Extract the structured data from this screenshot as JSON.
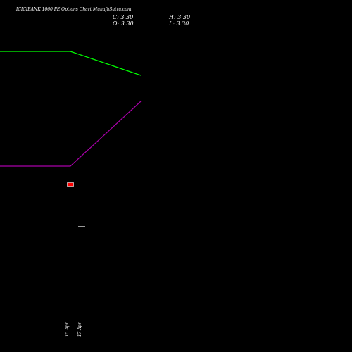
{
  "header": {
    "title": "ICICIBANK 1060 PE Options Chart MunafaSutra.com",
    "close_label": "C: 3.30",
    "open_label": "O: 3.30",
    "high_label": "H: 3.30",
    "low_label": "L: 3.30"
  },
  "chart_data": {
    "type": "line",
    "x": [
      0,
      1,
      2
    ],
    "ylim": [
      0,
      500
    ],
    "series": [
      {
        "color": "#00ff00",
        "values": [
          73,
          73,
          107
        ]
      },
      {
        "color": "#aa00aa",
        "values": [
          236,
          236,
          144
        ]
      }
    ],
    "candles": [
      {
        "x": 1,
        "low": 259.5,
        "high": 264.5,
        "open": 264.5,
        "close": 259.5,
        "color": "#ff0000"
      }
    ],
    "volume_ticks": [
      {
        "x": 1.16,
        "value": 322,
        "color": "#ffffff"
      }
    ],
    "x_tick_labels": [
      "15 Apr",
      "17 Apr"
    ],
    "grid": false
  }
}
